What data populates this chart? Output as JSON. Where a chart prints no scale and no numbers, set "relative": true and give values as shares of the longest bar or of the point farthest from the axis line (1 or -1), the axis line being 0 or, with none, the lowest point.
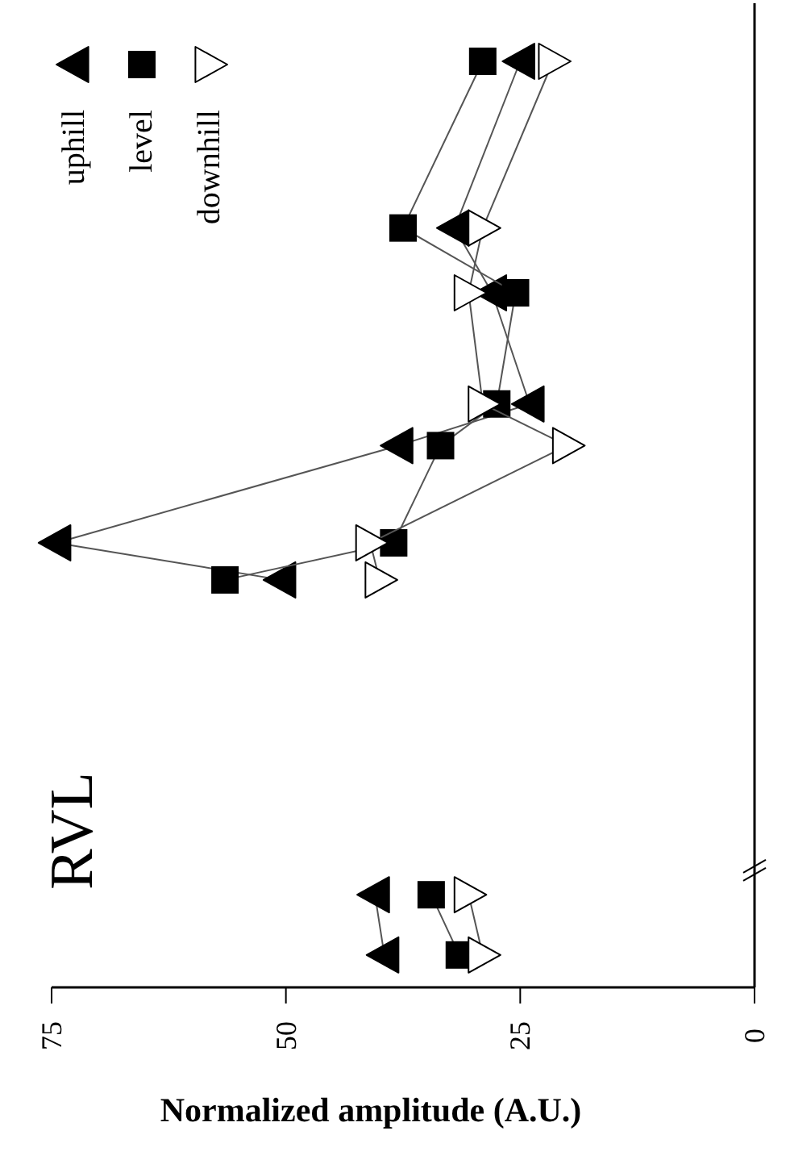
{
  "chart_data": {
    "type": "line",
    "relative": true,
    "xlabel": "Normalized amplitude (A.U.)",
    "annotations": [
      "RVL"
    ],
    "xlim": [
      75,
      0
    ],
    "xticks": [
      75,
      50,
      25,
      0
    ],
    "tick_labels": "x",
    "grid": false,
    "legend": "top left",
    "series": [
      {
        "name": "uphill",
        "color": "#000000",
        "marker": "triangle",
        "x": [
          39.5,
          40.5,
          null,
          50.5,
          74.5,
          38,
          24,
          28,
          32,
          25
        ],
        "values": [
          0.035,
          0.1,
          null,
          0.44,
          0.48,
          0.585,
          0.63,
          0.75,
          0.82,
          1
        ]
      },
      {
        "name": "level",
        "color": "#000000",
        "marker": "square",
        "x": [
          31.5,
          34.5,
          null,
          56.5,
          38.5,
          33.5,
          27.5,
          25.5,
          37.5,
          29
        ],
        "values": [
          0.035,
          0.1,
          null,
          0.44,
          0.48,
          0.585,
          0.63,
          0.75,
          0.82,
          1
        ]
      },
      {
        "name": "downhill",
        "color": "#ffffff",
        "marker": "triangle",
        "x": [
          29,
          30.5,
          null,
          40,
          41,
          20,
          29,
          30.5,
          29,
          21.5
        ],
        "values": [
          0.035,
          0.1,
          null,
          0.44,
          0.48,
          0.585,
          0.63,
          0.75,
          0.82,
          1
        ]
      }
    ]
  }
}
